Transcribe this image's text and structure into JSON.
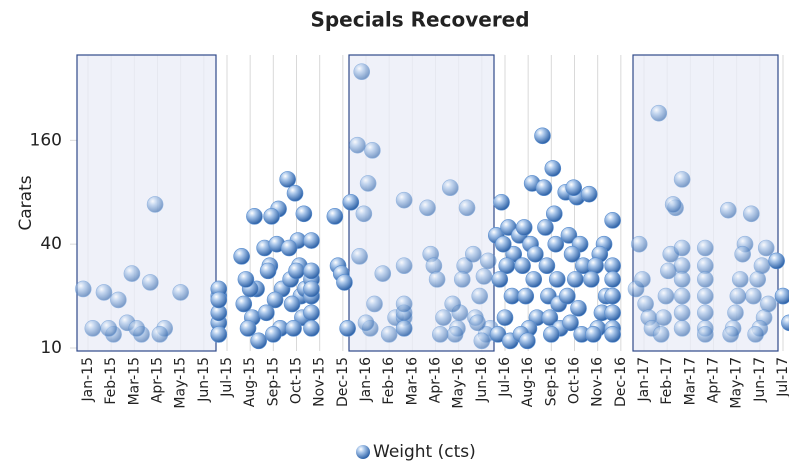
{
  "chart_data": {
    "type": "scatter",
    "title": "Specials Recovered",
    "y_label": "Carats",
    "log_y": true,
    "grid": true,
    "legend": "bottom",
    "xlim": [
      "2015-01",
      "2017-07"
    ],
    "xticks": [
      {
        "value": "2015-01",
        "label": "Jan-15"
      },
      {
        "value": "2015-02",
        "label": "Feb-15"
      },
      {
        "value": "2015-03",
        "label": "Mar-15"
      },
      {
        "value": "2015-04",
        "label": "Apr-15"
      },
      {
        "value": "2015-05",
        "label": "May-15"
      },
      {
        "value": "2015-06",
        "label": "Jun-15"
      },
      {
        "value": "2015-07",
        "label": "Jul-15"
      },
      {
        "value": "2015-08",
        "label": "Aug-15"
      },
      {
        "value": "2015-09",
        "label": "Sep-15"
      },
      {
        "value": "2015-10",
        "label": "Oct-15"
      },
      {
        "value": "2015-11",
        "label": "Nov-15"
      },
      {
        "value": "2015-12",
        "label": "Dec-15"
      },
      {
        "value": "2016-01",
        "label": "Jan-16"
      },
      {
        "value": "2016-02",
        "label": "Feb-16"
      },
      {
        "value": "2016-03",
        "label": "Mar-16"
      },
      {
        "value": "2016-04",
        "label": "Apr-16"
      },
      {
        "value": "2016-05",
        "label": "May-16"
      },
      {
        "value": "2016-06",
        "label": "Jun-16"
      },
      {
        "value": "2016-07",
        "label": "Jul-16"
      },
      {
        "value": "2016-08",
        "label": "Aug-16"
      },
      {
        "value": "2016-09",
        "label": "Sep-16"
      },
      {
        "value": "2016-10",
        "label": "Oct-16"
      },
      {
        "value": "2016-11",
        "label": "Nov-16"
      },
      {
        "value": "2016-12",
        "label": "Dec-16"
      },
      {
        "value": "2017-01",
        "label": "Jan-17"
      },
      {
        "value": "2017-02",
        "label": "Feb-17"
      },
      {
        "value": "2017-03",
        "label": "Mar-17"
      },
      {
        "value": "2017-04",
        "label": "Apr-17"
      },
      {
        "value": "2017-05",
        "label": "May-17"
      },
      {
        "value": "2017-06",
        "label": "Jun-17"
      },
      {
        "value": "2017-07",
        "label": "Jul-17"
      }
    ],
    "ylim": [
      10,
      500
    ],
    "yticks": [
      10,
      40,
      160
    ],
    "series": [
      {
        "name": "Weight (cts)",
        "color": "#5b8fd0",
        "x": [
          "2015-01",
          "2015-01",
          "2015-02",
          "2015-02",
          "2015-02",
          "2015-02",
          "2015-03",
          "2015-03",
          "2015-03",
          "2015-03",
          "2015-04",
          "2015-04",
          "2015-04",
          "2015-04",
          "2015-05",
          "2015-07",
          "2015-07",
          "2015-07",
          "2015-07",
          "2015-07",
          "2015-07",
          "2015-07",
          "2015-08",
          "2015-08",
          "2015-08",
          "2015-08",
          "2015-08",
          "2015-08",
          "2015-08",
          "2015-08",
          "2015-08",
          "2015-09",
          "2015-09",
          "2015-09",
          "2015-09",
          "2015-09",
          "2015-09",
          "2015-09",
          "2015-09",
          "2015-09",
          "2015-09",
          "2015-09",
          "2015-10",
          "2015-10",
          "2015-10",
          "2015-10",
          "2015-10",
          "2015-10",
          "2015-10",
          "2015-10",
          "2015-10",
          "2015-10",
          "2015-10",
          "2015-10",
          "2015-10",
          "2015-11",
          "2015-11",
          "2015-11",
          "2015-11",
          "2015-11",
          "2015-11",
          "2015-11",
          "2015-12",
          "2015-12",
          "2015-12",
          "2015-12",
          "2015-12",
          "2015-12",
          "2016-01",
          "2016-01",
          "2016-01",
          "2016-01",
          "2016-01",
          "2016-01",
          "2016-01",
          "2016-01",
          "2016-01",
          "2016-02",
          "2016-02",
          "2016-02",
          "2016-03",
          "2016-03",
          "2016-03",
          "2016-03",
          "2016-03",
          "2016-03",
          "2016-03",
          "2016-04",
          "2016-04",
          "2016-04",
          "2016-04",
          "2016-04",
          "2016-04",
          "2016-05",
          "2016-05",
          "2016-05",
          "2016-05",
          "2016-05",
          "2016-05",
          "2016-05",
          "2016-05",
          "2016-06",
          "2016-06",
          "2016-06",
          "2016-06",
          "2016-06",
          "2016-06",
          "2016-06",
          "2016-06",
          "2016-06",
          "2016-07",
          "2016-07",
          "2016-07",
          "2016-07",
          "2016-07",
          "2016-07",
          "2016-07",
          "2016-07",
          "2016-07",
          "2016-07",
          "2016-07",
          "2016-08",
          "2016-08",
          "2016-08",
          "2016-08",
          "2016-08",
          "2016-08",
          "2016-08",
          "2016-08",
          "2016-08",
          "2016-08",
          "2016-08",
          "2016-08",
          "2016-09",
          "2016-09",
          "2016-09",
          "2016-09",
          "2016-09",
          "2016-09",
          "2016-09",
          "2016-09",
          "2016-09",
          "2016-09",
          "2016-09",
          "2016-09",
          "2016-09",
          "2016-10",
          "2016-10",
          "2016-10",
          "2016-10",
          "2016-10",
          "2016-10",
          "2016-10",
          "2016-10",
          "2016-10",
          "2016-10",
          "2016-10",
          "2016-10",
          "2016-11",
          "2016-11",
          "2016-11",
          "2016-11",
          "2016-11",
          "2016-11",
          "2016-11",
          "2016-11",
          "2016-11",
          "2016-12",
          "2016-12",
          "2016-12",
          "2016-12",
          "2016-12",
          "2016-12",
          "2016-12",
          "2017-01",
          "2017-01",
          "2017-01",
          "2017-01",
          "2017-01",
          "2017-01",
          "2017-02",
          "2017-02",
          "2017-02",
          "2017-02",
          "2017-02",
          "2017-02",
          "2017-02",
          "2017-02",
          "2017-03",
          "2017-03",
          "2017-03",
          "2017-03",
          "2017-03",
          "2017-03",
          "2017-03",
          "2017-04",
          "2017-04",
          "2017-04",
          "2017-04",
          "2017-04",
          "2017-04",
          "2017-04",
          "2017-05",
          "2017-05",
          "2017-05",
          "2017-05",
          "2017-05",
          "2017-05",
          "2017-05",
          "2017-05",
          "2017-06",
          "2017-06",
          "2017-06",
          "2017-06",
          "2017-06",
          "2017-06",
          "2017-06",
          "2017-06",
          "2017-06",
          "2017-07",
          "2017-07",
          "2017-07"
        ],
        "values": [
          22,
          13,
          21,
          19,
          12,
          13,
          14,
          12,
          13,
          27,
          24,
          13,
          12,
          68,
          21,
          20,
          14,
          12,
          16,
          22,
          19,
          12,
          34,
          22,
          15,
          13,
          18,
          11,
          58,
          22,
          25,
          38,
          40,
          30,
          22,
          19,
          28,
          13,
          12,
          16,
          64,
          58,
          95,
          42,
          38,
          30,
          25,
          20,
          18,
          15,
          13,
          60,
          79,
          22,
          28,
          42,
          20,
          16,
          13,
          25,
          22,
          28,
          58,
          30,
          27,
          24,
          13,
          70,
          150,
          140,
          90,
          60,
          34,
          18,
          13,
          14,
          400,
          27,
          12,
          15,
          72,
          30,
          15,
          13,
          16,
          18,
          13,
          65,
          35,
          30,
          25,
          12,
          15,
          85,
          65,
          30,
          25,
          16,
          13,
          12,
          18,
          35,
          32,
          26,
          20,
          15,
          13,
          12,
          11,
          14,
          45,
          50,
          70,
          35,
          30,
          25,
          20,
          15,
          12,
          11,
          40,
          45,
          40,
          30,
          25,
          20,
          15,
          13,
          12,
          90,
          50,
          35,
          11,
          170,
          110,
          85,
          60,
          50,
          40,
          30,
          25,
          20,
          18,
          15,
          13,
          12,
          80,
          75,
          45,
          40,
          35,
          30,
          25,
          20,
          17,
          14,
          12,
          85,
          78,
          40,
          35,
          30,
          25,
          20,
          16,
          13,
          12,
          55,
          30,
          25,
          20,
          16,
          13,
          12,
          22,
          40,
          25,
          18,
          15,
          13,
          230,
          65,
          68,
          35,
          28,
          20,
          15,
          12,
          95,
          30,
          25,
          20,
          16,
          13,
          38,
          38,
          30,
          25,
          20,
          16,
          13,
          12,
          63,
          40,
          35,
          25,
          20,
          16,
          13,
          12,
          60,
          38,
          30,
          25,
          20,
          18,
          15,
          13,
          12,
          32,
          20,
          14
        ]
      }
    ]
  }
}
